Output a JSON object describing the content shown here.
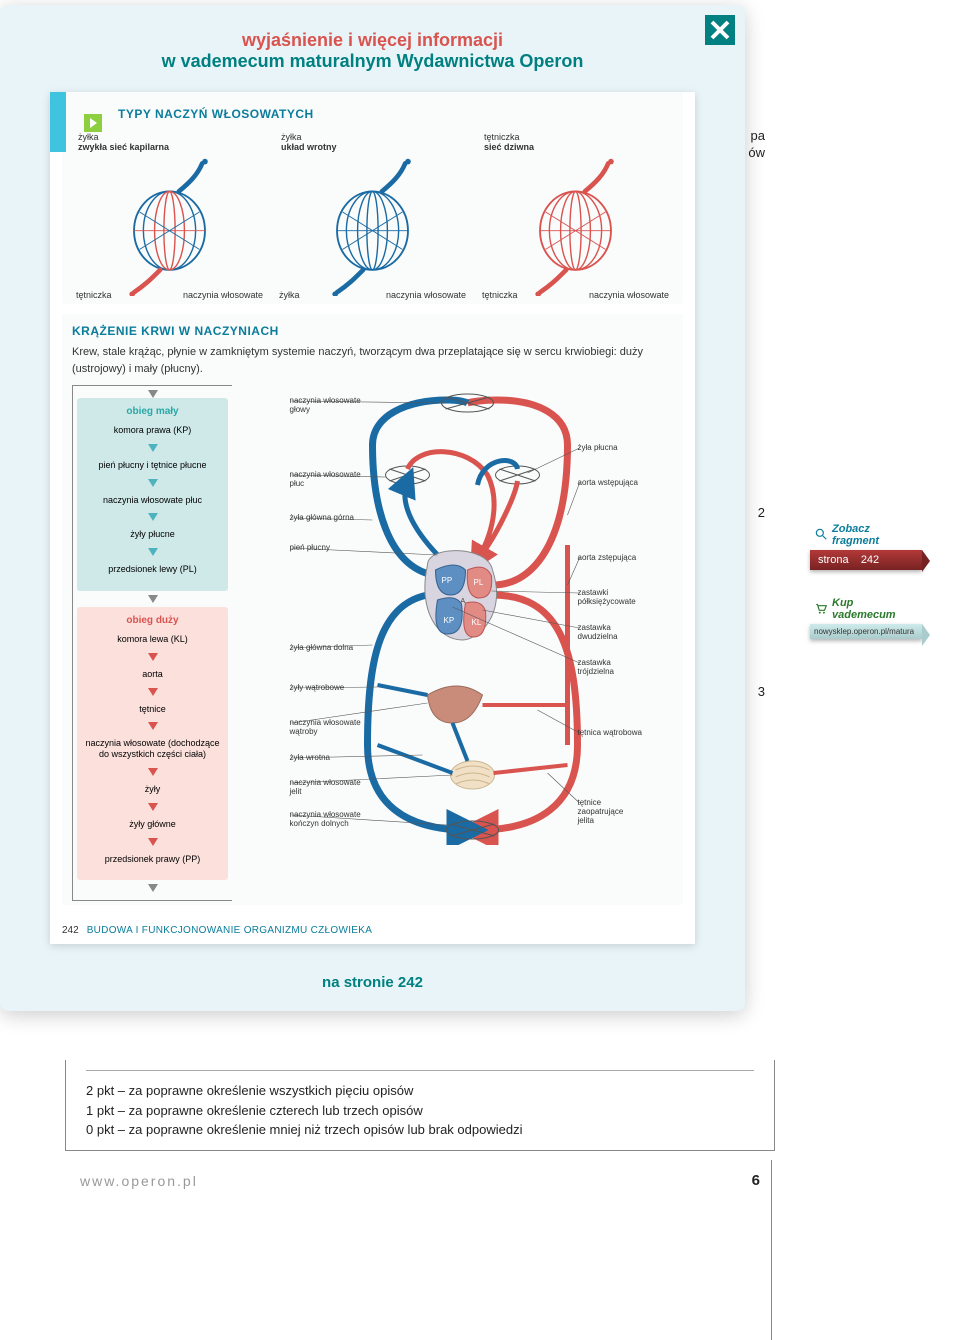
{
  "modal": {
    "title1": "wyjaśnienie i więcej informacji",
    "title2": "w vademecum maturalnym Wydawnictwa Operon",
    "footer": "na stronie 242"
  },
  "bg_hints": {
    "top1": "pa",
    "top2": "ów",
    "n1": "2",
    "n2": "3"
  },
  "section1": {
    "heading": "TYPY NACZYŃ WŁOSOWATYCH",
    "caps": [
      {
        "caption": "zwykła sieć kapilarna",
        "top_left": "żyłka",
        "top_right": "",
        "bottom_left": "tętniczka",
        "bottom_right": "naczynia włosowate",
        "color_in": "#d9534f",
        "color_out": "#1a6aa3"
      },
      {
        "caption": "układ wrotny",
        "top_left": "żyłka",
        "top_right": "",
        "bottom_left": "żyłka",
        "bottom_right": "naczynia włosowate",
        "color_in": "#1a6aa3",
        "color_out": "#1a6aa3"
      },
      {
        "caption": "sieć dziwna",
        "top_left": "tętniczka",
        "top_right": "",
        "bottom_left": "tętniczka",
        "bottom_right": "naczynia włosowate",
        "color_in": "#d9534f",
        "color_out": "#d9534f"
      }
    ]
  },
  "section2": {
    "heading": "KRĄŻENIE KRWI W NACZYNIACH",
    "body": "Krew, stale krążąc, płynie w zamkniętym systemie naczyń, tworzącym dwa przeplatające się w sercu krwiobiegi: duży (ustrojowy) i mały (płucny).",
    "small_loop": {
      "title": "obieg mały",
      "title_color": "#2aa7a7",
      "items": [
        "komora prawa (KP)",
        "pień płucny i tętnice płucne",
        "naczynia włosowate płuc",
        "żyły płucne",
        "przedsionek lewy (PL)"
      ]
    },
    "large_loop": {
      "title": "obieg duży",
      "title_color": "#d9534f",
      "items": [
        "komora lewa (KL)",
        "aorta",
        "tętnice",
        "naczynia włosowate (dochodzące do wszystkich części ciała)",
        "żyły",
        "żyły główne",
        "przedsionek prawy (PP)"
      ]
    },
    "labels_left": [
      "naczynia włosowate głowy",
      "naczynia włosowate płuc",
      "żyła główna górna",
      "pień płucny",
      "żyła główna dolna",
      "żyły wątrobowe",
      "naczynia włosowate wątroby",
      "żyła wrotna",
      "naczynia włosowate jelit",
      "naczynia włosowate kończyn dolnych"
    ],
    "labels_right": [
      "żyła płucna",
      "aorta wstępująca",
      "aorta zstępująca",
      "zastawki półksiężycowate",
      "zastawka dwudzielna",
      "zastawka trójdzielna",
      "tętnica wątrobowa",
      "tętnice zaopatrujące jelita"
    ],
    "heart_labels": {
      "pp": "PP",
      "pl": "PL",
      "kp": "KP",
      "kl": "KL",
      "a": "A"
    }
  },
  "page_footer": {
    "page": "242",
    "book": "BUDOWA I FUNKCJONOWANIE ORGANIZMU CZŁOWIEKA"
  },
  "colors": {
    "artery": "#d9534f",
    "vein": "#1a6aa3",
    "teal": "#0a7d9c",
    "cyan": "#3fc4e0",
    "grid": "#e6ecf0"
  },
  "bg_scoring": {
    "l1": "2 pkt – za poprawne określenie wszystkich pięciu opisów",
    "l2": "1 pkt – za poprawne określenie czterech lub trzech opisów",
    "l3": "0 pkt – za poprawne określenie mniej niż trzech opisów lub brak odpowiedzi"
  },
  "bg_footer": {
    "url": "www.operon.pl",
    "page": "6"
  },
  "widgets": {
    "fragment": "Zobacz fragment",
    "page_label": "strona",
    "page_num": "242",
    "buy": "Kup vademecum",
    "shop": "nowysklep.operon.pl/matura"
  }
}
